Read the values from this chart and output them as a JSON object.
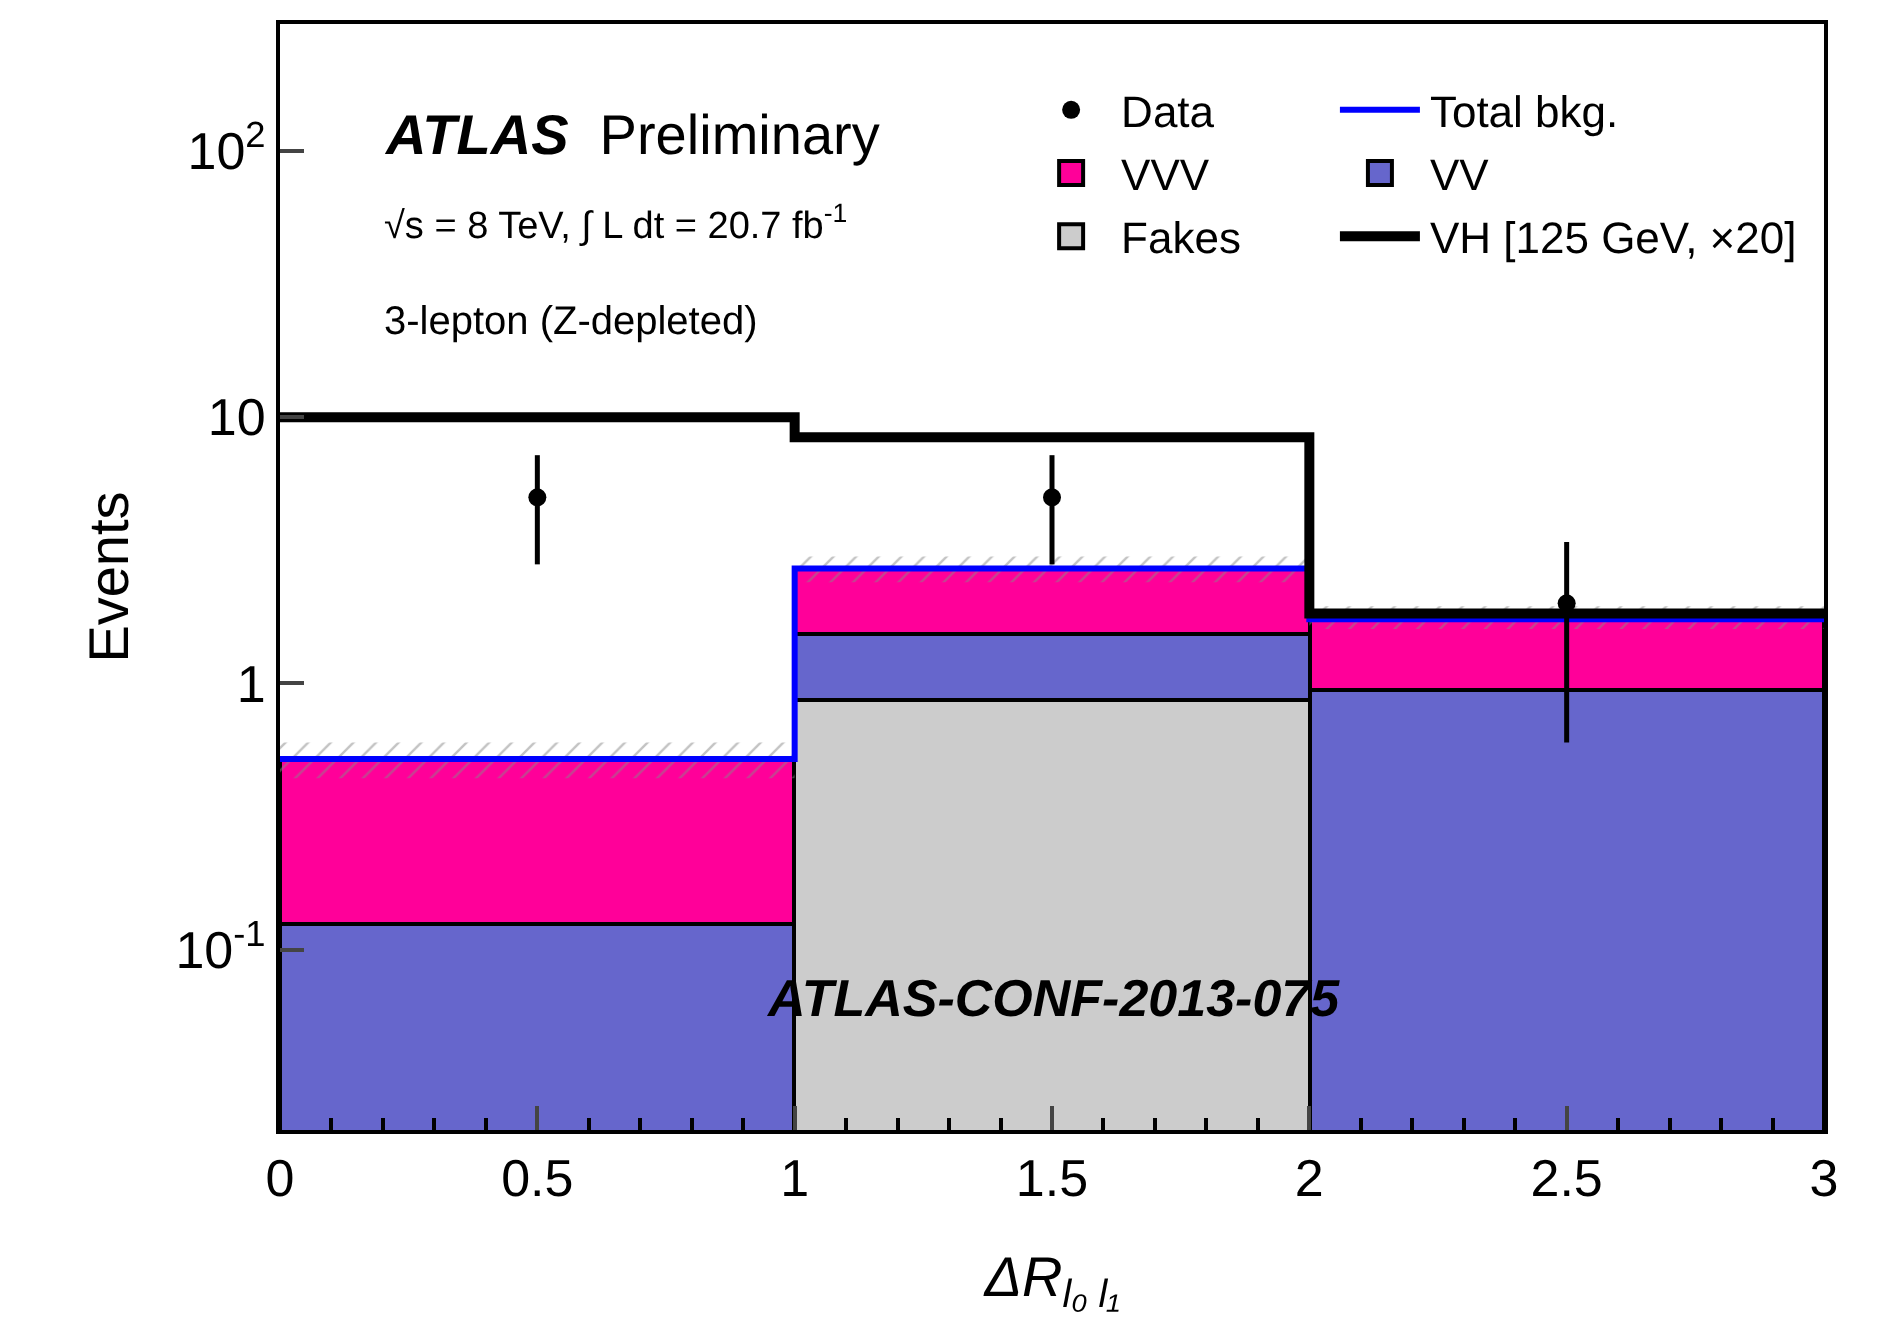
{
  "chart_data": {
    "type": "bar",
    "stacked": true,
    "log": "y",
    "xlabel": "ΔR$_{l₀ l₁}$",
    "ylabel": "Events",
    "x": [
      0.5,
      1.5,
      2.5
    ],
    "xlim": [
      0,
      3
    ],
    "xticks": [
      0,
      0.5,
      1,
      1.5,
      2,
      2.5,
      3
    ],
    "ylim": [
      0.021,
      300
    ],
    "yticks": [
      {
        "value": 0.1,
        "label": "10$^{-1}$"
      },
      1,
      10,
      {
        "value": 100,
        "label": "10$^{2}$"
      }
    ],
    "legend": "top right",
    "series": [
      {
        "name": "Fakes",
        "color": "#cccccc",
        "values": [
          null,
          0.87,
          null
        ]
      },
      {
        "name": "VV",
        "color": "#6666cc",
        "values": [
          0.125,
          0.67,
          0.95
        ]
      },
      {
        "name": "VVV",
        "color": "#ff0099",
        "values": [
          0.4,
          1.16,
          0.79
        ]
      },
      {
        "name": "Total bkg.",
        "type": "step",
        "color": "#0000ff",
        "x": [
          0,
          1,
          2,
          3
        ],
        "values": [
          0.52,
          2.7,
          1.74,
          1.74
        ],
        "lower": [
          0.44,
          2.4,
          1.6,
          1.6
        ],
        "upper": [
          0.6,
          3.0,
          1.95,
          1.95
        ]
      },
      {
        "name": "VH [125 GeV, ×20]",
        "type": "step",
        "color": "#000000",
        "x": [
          0,
          1,
          2,
          3
        ],
        "values": [
          10,
          8.4,
          1.83,
          1.83
        ]
      },
      {
        "name": "Data",
        "type": "scatter",
        "color": "#000000",
        "marker": "circle",
        "x": [
          0.5,
          1.5,
          2.5
        ],
        "values": [
          5,
          5,
          2
        ],
        "errors": [
          [
            2.8,
            7.2
          ],
          [
            2.8,
            7.2
          ],
          [
            0.6,
            3.4
          ]
        ]
      }
    ],
    "annotations": [
      "ATLAS Preliminary",
      "√s = 8 TeV, ∫ L dt = 20.7 fb$^{-1}$",
      "3-lepton (Z-depleted)",
      "ATLAS-CONF-2013-075"
    ]
  }
}
